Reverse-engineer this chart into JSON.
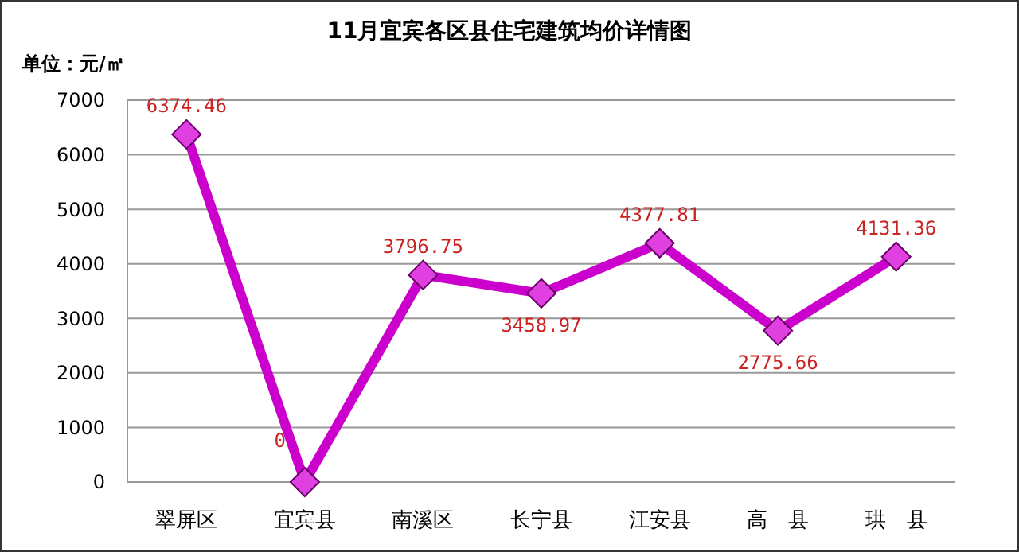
{
  "chart_data": {
    "type": "line",
    "title": "11月宜宾各区县住宅建筑均价详情图",
    "ylabel": "单位：元/㎡",
    "categories": [
      "翠屏区",
      "宜宾县",
      "南溪区",
      "长宁县",
      "江安县",
      "高　县",
      "珙　县"
    ],
    "series": [
      {
        "color": "#cc00cc",
        "values": [
          6374.46,
          0,
          3796.75,
          3458.97,
          4377.81,
          2775.66,
          4131.36
        ]
      }
    ],
    "ylim": [
      0,
      7000
    ],
    "yticks": [
      0,
      1000,
      2000,
      3000,
      4000,
      5000,
      6000,
      7000
    ],
    "grid": "y",
    "marker": "diamond",
    "data_labels": true
  }
}
